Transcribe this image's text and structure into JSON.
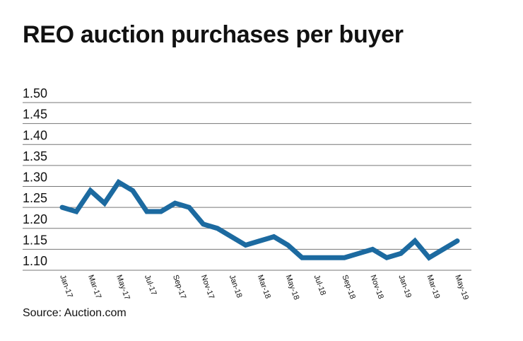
{
  "chart_data": {
    "type": "line",
    "title": "REO auction purchases per buyer",
    "source": "Source: Auction.com",
    "xlabel": "",
    "ylabel": "",
    "ylim": [
      1.1,
      1.5
    ],
    "yticks": [
      "1.50",
      "1.45",
      "1.40",
      "1.35",
      "1.30",
      "1.25",
      "1.20",
      "1.15",
      "1.10"
    ],
    "grid": true,
    "line_color": "#1c6aa0",
    "x": [
      "Jan-17",
      "Feb-17",
      "Mar-17",
      "Apr-17",
      "May-17",
      "Jun-17",
      "Jul-17",
      "Aug-17",
      "Sep-17",
      "Oct-17",
      "Nov-17",
      "Dec-17",
      "Jan-18",
      "Feb-18",
      "Mar-18",
      "Apr-18",
      "May-18",
      "Jun-18",
      "Jul-18",
      "Aug-18",
      "Sep-18",
      "Oct-18",
      "Nov-18",
      "Dec-18",
      "Jan-19",
      "Feb-19",
      "Mar-19",
      "Apr-19",
      "May-19"
    ],
    "xticks": [
      "Jan-17",
      "Mar-17",
      "May-17",
      "Jul-17",
      "Sep-17",
      "Nov-17",
      "Jan-18",
      "Mar-18",
      "May-18",
      "Jul-18",
      "Sep-18",
      "Nov-18",
      "Jan-19",
      "Mar-19",
      "May-19"
    ],
    "values": [
      1.25,
      1.24,
      1.29,
      1.26,
      1.31,
      1.29,
      1.24,
      1.24,
      1.26,
      1.25,
      1.21,
      1.2,
      1.18,
      1.16,
      1.17,
      1.18,
      1.16,
      1.13,
      1.13,
      1.13,
      1.13,
      1.14,
      1.15,
      1.13,
      1.14,
      1.17,
      1.13,
      1.15,
      1.17
    ]
  }
}
